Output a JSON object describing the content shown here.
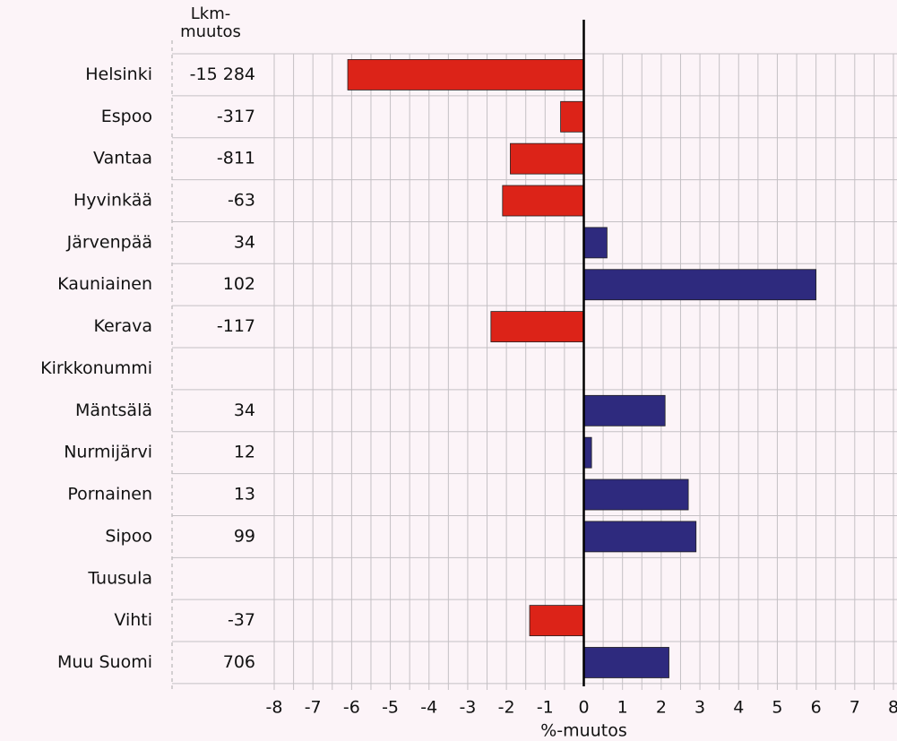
{
  "chart_data": {
    "type": "hbar",
    "count_header": "Lkm-muutos",
    "x_label": "%-muutos",
    "categories": [
      "Helsinki",
      "Espoo",
      "Vantaa",
      "Hyvinkää",
      "Järvenpää",
      "Kauniainen",
      "Kerava",
      "Kirkkonummi",
      "Mäntsälä",
      "Nurmijärvi",
      "Pornainen",
      "Sipoo",
      "Tuusula",
      "Vihti",
      "Muu Suomi"
    ],
    "values": [
      -6.1,
      -0.6,
      -1.9,
      -2.1,
      0.6,
      6.0,
      -2.4,
      null,
      2.1,
      0.2,
      2.7,
      2.9,
      null,
      -1.4,
      2.2
    ],
    "counts": [
      -15284,
      -317,
      -811,
      -63,
      34,
      102,
      -117,
      null,
      34,
      12,
      13,
      99,
      null,
      -37,
      706
    ],
    "count_labels": [
      "-15 284",
      "-317",
      "-811",
      "-63",
      "34",
      "102",
      "-117",
      null,
      "34",
      "12",
      "13",
      "99",
      null,
      "-37",
      "706"
    ],
    "negative_color": "#dc2318",
    "positive_color": "#2e2a7e",
    "xlim": [
      -8,
      8
    ],
    "xticks": [
      -8,
      -7,
      -6,
      -5,
      -4,
      -3,
      -2,
      -1,
      0,
      1,
      2,
      3,
      4,
      5,
      6,
      7,
      8
    ],
    "xminorticks": [
      -7.5,
      -6.5,
      -5.5,
      -4.5,
      -3.5,
      -2.5,
      -1.5,
      -0.5,
      0.5,
      1.5,
      2.5,
      3.5,
      4.5,
      5.5,
      6.5,
      7.5
    ],
    "grid": true
  }
}
